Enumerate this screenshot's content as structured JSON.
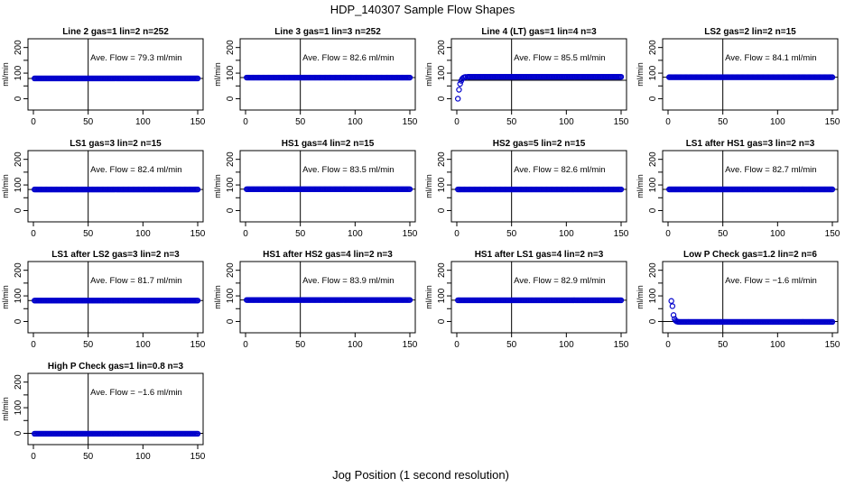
{
  "figure": {
    "title": "HDP_140307  Sample Flow Shapes",
    "xlabel": "Jog Position (1 second resolution)"
  },
  "colors": {
    "points": "#0000cc",
    "axes": "#000000",
    "background": "#ffffff"
  },
  "chart_data": [
    {
      "type": "scatter",
      "title": "Line 2 gas=1 lin=2 n=252",
      "ylabel": "ml/min",
      "annotation": "Ave. Flow =  79.3  ml/min",
      "xlim": [
        0,
        150
      ],
      "ylim": [
        -30,
        220
      ],
      "xticks": [
        0,
        50,
        100,
        150
      ],
      "yticks": [
        0,
        100,
        200
      ],
      "yticks_minor": [
        50,
        150
      ],
      "vline_x": 50,
      "hline_y": 79.3,
      "series": [
        {
          "mode": "constant",
          "x_start": 1,
          "x_end": 150,
          "y": 79.3
        }
      ]
    },
    {
      "type": "scatter",
      "title": "Line 3 gas=1 lin=3 n=252",
      "ylabel": "ml/min",
      "annotation": "Ave. Flow =  82.6  ml/min",
      "xlim": [
        0,
        150
      ],
      "ylim": [
        -30,
        220
      ],
      "xticks": [
        0,
        50,
        100,
        150
      ],
      "yticks": [
        0,
        100,
        200
      ],
      "yticks_minor": [
        50,
        150
      ],
      "vline_x": 50,
      "hline_y": 82.6,
      "series": [
        {
          "mode": "constant",
          "x_start": 1,
          "x_end": 150,
          "y": 82.6
        }
      ]
    },
    {
      "type": "scatter",
      "title": "Line 4 (LT) gas=1 lin=4 n=3",
      "ylabel": "ml/min",
      "annotation": "Ave. Flow =  85.5  ml/min",
      "xlim": [
        0,
        150
      ],
      "ylim": [
        -30,
        220
      ],
      "xticks": [
        0,
        50,
        100,
        150
      ],
      "yticks": [
        0,
        100,
        200
      ],
      "yticks_minor": [
        50,
        150
      ],
      "vline_x": 50,
      "hline_y": 72,
      "series": [
        {
          "mode": "rise",
          "x_start": 1,
          "x_end": 150,
          "y": 85.5,
          "points": [
            [
              1,
              0
            ],
            [
              2,
              35
            ],
            [
              3,
              58
            ],
            [
              4,
              70
            ],
            [
              5,
              78
            ],
            [
              6,
              82
            ],
            [
              7,
              84
            ],
            [
              8,
              85
            ],
            [
              10,
              85.5
            ]
          ]
        }
      ]
    },
    {
      "type": "scatter",
      "title": "LS2 gas=2 lin=2 n=15",
      "ylabel": "ml/min",
      "annotation": "Ave. Flow =  84.1  ml/min",
      "xlim": [
        0,
        150
      ],
      "ylim": [
        -30,
        220
      ],
      "xticks": [
        0,
        50,
        100,
        150
      ],
      "yticks": [
        0,
        100,
        200
      ],
      "yticks_minor": [
        50,
        150
      ],
      "vline_x": 50,
      "hline_y": 84.1,
      "series": [
        {
          "mode": "constant",
          "x_start": 1,
          "x_end": 150,
          "y": 84.1
        }
      ]
    },
    {
      "type": "scatter",
      "title": "LS1 gas=3 lin=2 n=15",
      "ylabel": "ml/min",
      "annotation": "Ave. Flow =  82.4  ml/min",
      "xlim": [
        0,
        150
      ],
      "ylim": [
        -30,
        220
      ],
      "xticks": [
        0,
        50,
        100,
        150
      ],
      "yticks": [
        0,
        100,
        200
      ],
      "yticks_minor": [
        50,
        150
      ],
      "vline_x": 50,
      "hline_y": 82.4,
      "series": [
        {
          "mode": "constant",
          "x_start": 1,
          "x_end": 150,
          "y": 82.4
        }
      ]
    },
    {
      "type": "scatter",
      "title": "HS1 gas=4 lin=2 n=15",
      "ylabel": "ml/min",
      "annotation": "Ave. Flow =  83.5  ml/min",
      "xlim": [
        0,
        150
      ],
      "ylim": [
        -30,
        220
      ],
      "xticks": [
        0,
        50,
        100,
        150
      ],
      "yticks": [
        0,
        100,
        200
      ],
      "yticks_minor": [
        50,
        150
      ],
      "vline_x": 50,
      "hline_y": 83.5,
      "series": [
        {
          "mode": "constant",
          "x_start": 1,
          "x_end": 150,
          "y": 83.5
        }
      ]
    },
    {
      "type": "scatter",
      "title": "HS2 gas=5 lin=2 n=15",
      "ylabel": "ml/min",
      "annotation": "Ave. Flow =  82.6  ml/min",
      "xlim": [
        0,
        150
      ],
      "ylim": [
        -30,
        220
      ],
      "xticks": [
        0,
        50,
        100,
        150
      ],
      "yticks": [
        0,
        100,
        200
      ],
      "yticks_minor": [
        50,
        150
      ],
      "vline_x": 50,
      "hline_y": 82.6,
      "series": [
        {
          "mode": "constant",
          "x_start": 1,
          "x_end": 150,
          "y": 82.6
        }
      ]
    },
    {
      "type": "scatter",
      "title": "LS1 after HS1 gas=3 lin=2 n=3",
      "ylabel": "ml/min",
      "annotation": "Ave. Flow =  82.7  ml/min",
      "xlim": [
        0,
        150
      ],
      "ylim": [
        -30,
        220
      ],
      "xticks": [
        0,
        50,
        100,
        150
      ],
      "yticks": [
        0,
        100,
        200
      ],
      "yticks_minor": [
        50,
        150
      ],
      "vline_x": 50,
      "hline_y": 82.7,
      "series": [
        {
          "mode": "constant",
          "x_start": 1,
          "x_end": 150,
          "y": 82.7
        }
      ]
    },
    {
      "type": "scatter",
      "title": "LS1 after LS2 gas=3 lin=2 n=3",
      "ylabel": "ml/min",
      "annotation": "Ave. Flow =  81.7  ml/min",
      "xlim": [
        0,
        150
      ],
      "ylim": [
        -30,
        220
      ],
      "xticks": [
        0,
        50,
        100,
        150
      ],
      "yticks": [
        0,
        100,
        200
      ],
      "yticks_minor": [
        50,
        150
      ],
      "vline_x": 50,
      "hline_y": 81.7,
      "series": [
        {
          "mode": "constant",
          "x_start": 1,
          "x_end": 150,
          "y": 81.7
        }
      ]
    },
    {
      "type": "scatter",
      "title": "HS1 after HS2 gas=4 lin=2 n=3",
      "ylabel": "ml/min",
      "annotation": "Ave. Flow =  83.9  ml/min",
      "xlim": [
        0,
        150
      ],
      "ylim": [
        -30,
        220
      ],
      "xticks": [
        0,
        50,
        100,
        150
      ],
      "yticks": [
        0,
        100,
        200
      ],
      "yticks_minor": [
        50,
        150
      ],
      "vline_x": 50,
      "hline_y": 83.9,
      "series": [
        {
          "mode": "constant",
          "x_start": 1,
          "x_end": 150,
          "y": 83.9
        }
      ]
    },
    {
      "type": "scatter",
      "title": "HS1 after LS1 gas=4 lin=2 n=3",
      "ylabel": "ml/min",
      "annotation": "Ave. Flow =  82.9  ml/min",
      "xlim": [
        0,
        150
      ],
      "ylim": [
        -30,
        220
      ],
      "xticks": [
        0,
        50,
        100,
        150
      ],
      "yticks": [
        0,
        100,
        200
      ],
      "yticks_minor": [
        50,
        150
      ],
      "vline_x": 50,
      "hline_y": 82.9,
      "series": [
        {
          "mode": "constant",
          "x_start": 1,
          "x_end": 150,
          "y": 82.9
        }
      ]
    },
    {
      "type": "scatter",
      "title": "Low P Check gas=1.2 lin=2 n=6",
      "ylabel": "ml/min",
      "annotation": "Ave. Flow =  −1.6  ml/min",
      "xlim": [
        0,
        150
      ],
      "ylim": [
        -30,
        220
      ],
      "xticks": [
        0,
        50,
        100,
        150
      ],
      "yticks": [
        0,
        100,
        200
      ],
      "yticks_minor": [
        50,
        150
      ],
      "vline_x": 50,
      "hline_y": 0,
      "series": [
        {
          "mode": "decay",
          "x_start": 1,
          "x_end": 150,
          "y": -1.6,
          "points": [
            [
              3,
              80
            ],
            [
              4,
              60
            ],
            [
              5,
              25
            ],
            [
              6,
              10
            ],
            [
              7,
              3
            ],
            [
              8,
              0
            ],
            [
              9,
              -1
            ]
          ]
        }
      ]
    },
    {
      "type": "scatter",
      "title": "High P Check gas=1 lin=0.8 n=3",
      "ylabel": "ml/min",
      "annotation": "Ave. Flow =  −1.6  ml/min",
      "xlim": [
        0,
        150
      ],
      "ylim": [
        -30,
        220
      ],
      "xticks": [
        0,
        50,
        100,
        150
      ],
      "yticks": [
        0,
        100,
        200
      ],
      "yticks_minor": [
        50,
        150
      ],
      "vline_x": 50,
      "hline_y": 0,
      "series": [
        {
          "mode": "constant",
          "x_start": 1,
          "x_end": 150,
          "y": -1.6
        }
      ]
    }
  ]
}
